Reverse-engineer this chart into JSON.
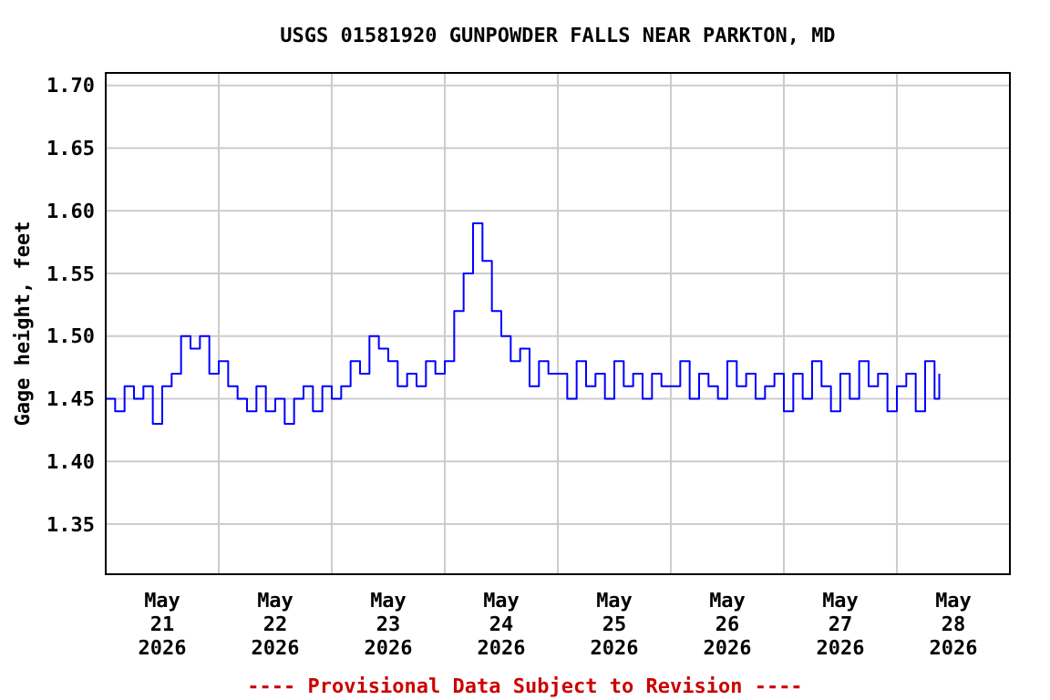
{
  "chart_data": {
    "type": "step",
    "title": "USGS 01581920 GUNPOWDER FALLS NEAR PARKTON, MD",
    "ylabel": "Gage height, feet",
    "annotations": [
      "---- Provisional Data Subject to Revision ----"
    ],
    "xlim": [
      "2026-05-21T00:00",
      "2026-05-29T00:00"
    ],
    "ylim": [
      1.31,
      1.71
    ],
    "yticks": [
      {
        "value": 1.35,
        "label": "1.35"
      },
      {
        "value": 1.4,
        "label": "1.40"
      },
      {
        "value": 1.45,
        "label": "1.45"
      },
      {
        "value": 1.5,
        "label": "1.50"
      },
      {
        "value": 1.55,
        "label": "1.55"
      },
      {
        "value": 1.6,
        "label": "1.60"
      },
      {
        "value": 1.65,
        "label": "1.65"
      },
      {
        "value": 1.7,
        "label": "1.70"
      }
    ],
    "xticks": [
      {
        "value": "2026-05-21T00:00",
        "label": null
      },
      {
        "value": "2026-05-21T12:00",
        "label": "May\n21\n2026"
      },
      {
        "value": "2026-05-22T00:00",
        "label": null
      },
      {
        "value": "2026-05-22T12:00",
        "label": "May\n22\n2026"
      },
      {
        "value": "2026-05-23T00:00",
        "label": null
      },
      {
        "value": "2026-05-23T12:00",
        "label": "May\n23\n2026"
      },
      {
        "value": "2026-05-24T00:00",
        "label": null
      },
      {
        "value": "2026-05-24T12:00",
        "label": "May\n24\n2026"
      },
      {
        "value": "2026-05-25T00:00",
        "label": null
      },
      {
        "value": "2026-05-25T12:00",
        "label": "May\n25\n2026"
      },
      {
        "value": "2026-05-26T00:00",
        "label": null
      },
      {
        "value": "2026-05-26T12:00",
        "label": "May\n26\n2026"
      },
      {
        "value": "2026-05-27T00:00",
        "label": null
      },
      {
        "value": "2026-05-27T12:00",
        "label": "May\n27\n2026"
      },
      {
        "value": "2026-05-28T00:00",
        "label": null
      },
      {
        "value": "2026-05-28T12:00",
        "label": "May\n28\n2026"
      },
      {
        "value": "2026-05-29T00:00",
        "label": null
      }
    ],
    "grid": true,
    "series": [
      {
        "color": "#0000ff",
        "x": [
          "2026-05-21T00:00",
          "2026-05-21T02:00",
          "2026-05-21T04:00",
          "2026-05-21T06:00",
          "2026-05-21T08:00",
          "2026-05-21T10:00",
          "2026-05-21T12:00",
          "2026-05-21T14:00",
          "2026-05-21T16:00",
          "2026-05-21T18:00",
          "2026-05-21T20:00",
          "2026-05-21T22:00",
          "2026-05-22T00:00",
          "2026-05-22T02:00",
          "2026-05-22T04:00",
          "2026-05-22T06:00",
          "2026-05-22T08:00",
          "2026-05-22T10:00",
          "2026-05-22T12:00",
          "2026-05-22T14:00",
          "2026-05-22T16:00",
          "2026-05-22T18:00",
          "2026-05-22T20:00",
          "2026-05-22T22:00",
          "2026-05-23T00:00",
          "2026-05-23T02:00",
          "2026-05-23T04:00",
          "2026-05-23T06:00",
          "2026-05-23T08:00",
          "2026-05-23T10:00",
          "2026-05-23T12:00",
          "2026-05-23T14:00",
          "2026-05-23T16:00",
          "2026-05-23T18:00",
          "2026-05-23T20:00",
          "2026-05-23T22:00",
          "2026-05-24T00:00",
          "2026-05-24T02:00",
          "2026-05-24T04:00",
          "2026-05-24T06:00",
          "2026-05-24T08:00",
          "2026-05-24T10:00",
          "2026-05-24T12:00",
          "2026-05-24T14:00",
          "2026-05-24T16:00",
          "2026-05-24T18:00",
          "2026-05-24T20:00",
          "2026-05-24T22:00",
          "2026-05-25T00:00",
          "2026-05-25T02:00",
          "2026-05-25T04:00",
          "2026-05-25T06:00",
          "2026-05-25T08:00",
          "2026-05-25T10:00",
          "2026-05-25T12:00",
          "2026-05-25T14:00",
          "2026-05-25T16:00",
          "2026-05-25T18:00",
          "2026-05-25T20:00",
          "2026-05-25T22:00",
          "2026-05-26T00:00",
          "2026-05-26T02:00",
          "2026-05-26T04:00",
          "2026-05-26T06:00",
          "2026-05-26T08:00",
          "2026-05-26T10:00",
          "2026-05-26T12:00",
          "2026-05-26T14:00",
          "2026-05-26T16:00",
          "2026-05-26T18:00",
          "2026-05-26T20:00",
          "2026-05-26T22:00",
          "2026-05-27T00:00",
          "2026-05-27T02:00",
          "2026-05-27T04:00",
          "2026-05-27T06:00",
          "2026-05-27T08:00",
          "2026-05-27T10:00",
          "2026-05-27T12:00",
          "2026-05-27T14:00",
          "2026-05-27T16:00",
          "2026-05-27T18:00",
          "2026-05-27T20:00",
          "2026-05-27T22:00",
          "2026-05-28T00:00",
          "2026-05-28T02:00",
          "2026-05-28T04:00",
          "2026-05-28T06:00",
          "2026-05-28T08:00",
          "2026-05-28T09:00"
        ],
        "values": [
          1.45,
          1.44,
          1.46,
          1.45,
          1.46,
          1.43,
          1.46,
          1.47,
          1.5,
          1.49,
          1.5,
          1.47,
          1.48,
          1.46,
          1.45,
          1.44,
          1.46,
          1.44,
          1.45,
          1.43,
          1.45,
          1.46,
          1.44,
          1.46,
          1.45,
          1.46,
          1.48,
          1.47,
          1.5,
          1.49,
          1.48,
          1.46,
          1.47,
          1.46,
          1.48,
          1.47,
          1.48,
          1.52,
          1.55,
          1.59,
          1.56,
          1.52,
          1.5,
          1.48,
          1.49,
          1.46,
          1.48,
          1.47,
          1.47,
          1.45,
          1.48,
          1.46,
          1.47,
          1.45,
          1.48,
          1.46,
          1.47,
          1.45,
          1.47,
          1.46,
          1.46,
          1.48,
          1.45,
          1.47,
          1.46,
          1.45,
          1.48,
          1.46,
          1.47,
          1.45,
          1.46,
          1.47,
          1.44,
          1.47,
          1.45,
          1.48,
          1.46,
          1.44,
          1.47,
          1.45,
          1.48,
          1.46,
          1.47,
          1.44,
          1.46,
          1.47,
          1.44,
          1.48,
          1.45,
          1.47
        ]
      }
    ]
  }
}
